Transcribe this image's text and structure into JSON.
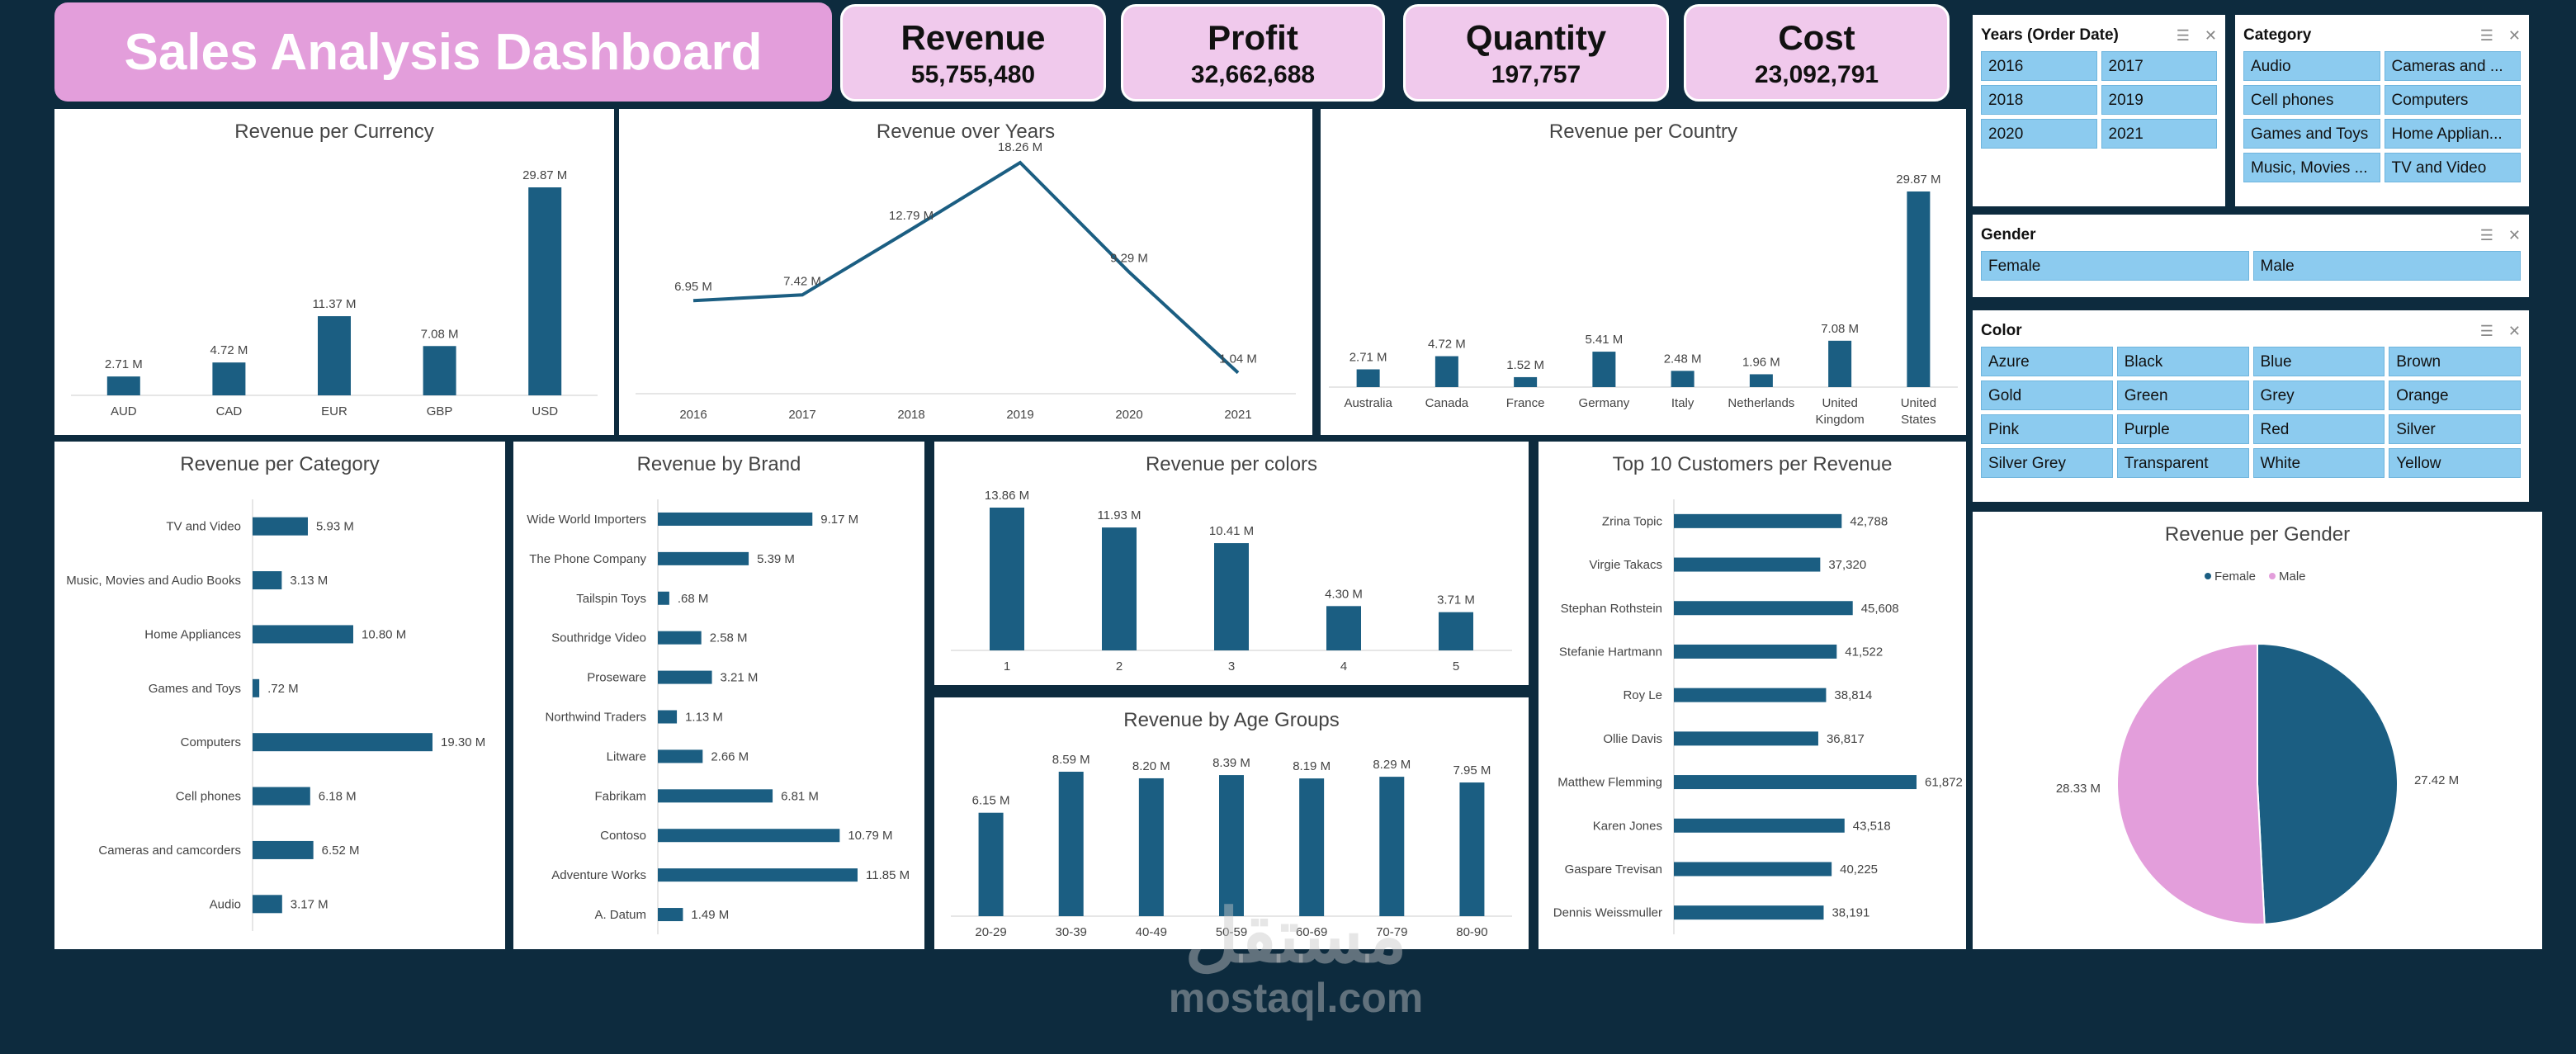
{
  "header": {
    "title": "Sales Analysis Dashboard"
  },
  "kpis": [
    {
      "label": "Revenue",
      "value": "55,755,480"
    },
    {
      "label": "Profit",
      "value": "32,662,688"
    },
    {
      "label": "Quantity",
      "value": "197,757"
    },
    {
      "label": "Cost",
      "value": "23,092,791"
    }
  ],
  "colors": {
    "bar": "#1b5e82",
    "female": "#1b5e82",
    "male": "#e39edb",
    "background": "#0d2b3e"
  },
  "slicers": {
    "years": {
      "title": "Years (Order Date)",
      "items": [
        "2016",
        "2017",
        "2018",
        "2019",
        "2020",
        "2021"
      ]
    },
    "category": {
      "title": "Category",
      "items": [
        "Audio",
        "Cameras and ...",
        "Cell phones",
        "Computers",
        "Games and Toys",
        "Home Applian...",
        "Music, Movies ...",
        "TV and Video"
      ]
    },
    "gender": {
      "title": "Gender",
      "items": [
        "Female",
        "Male"
      ]
    },
    "color": {
      "title": "Color",
      "items": [
        "Azure",
        "Black",
        "Blue",
        "Brown",
        "Gold",
        "Green",
        "Grey",
        "Orange",
        "Pink",
        "Purple",
        "Red",
        "Silver",
        "Silver Grey",
        "Transparent",
        "White",
        "Yellow"
      ]
    }
  },
  "chart_data": [
    {
      "id": "currency",
      "type": "bar",
      "title": "Revenue per Currency",
      "categories": [
        "AUD",
        "CAD",
        "EUR",
        "GBP",
        "USD"
      ],
      "values": [
        2.71,
        4.72,
        11.37,
        7.08,
        29.87
      ],
      "labels": [
        "2.71 M",
        "4.72 M",
        "11.37 M",
        "7.08 M",
        "29.87 M"
      ]
    },
    {
      "id": "years",
      "type": "line",
      "title": "Revenue over Years",
      "categories": [
        "2016",
        "2017",
        "2018",
        "2019",
        "2020",
        "2021"
      ],
      "values": [
        6.95,
        7.42,
        12.79,
        18.26,
        9.29,
        1.04
      ],
      "labels": [
        "6.95 M",
        "7.42 M",
        "12.79 M",
        "18.26 M",
        "9.29 M",
        "1.04 M"
      ]
    },
    {
      "id": "country",
      "type": "bar",
      "title": "Revenue per Country",
      "categories": [
        "Australia",
        "Canada",
        "France",
        "Germany",
        "Italy",
        "Netherlands",
        "United Kingdom",
        "United States"
      ],
      "values": [
        2.71,
        4.72,
        1.52,
        5.41,
        2.48,
        1.96,
        7.08,
        29.87
      ],
      "labels": [
        "2.71 M",
        "4.72 M",
        "1.52 M",
        "5.41 M",
        "2.48 M",
        "1.96 M",
        "7.08 M",
        "29.87 M"
      ]
    },
    {
      "id": "category",
      "type": "bar",
      "orientation": "horizontal",
      "title": "Revenue per Category",
      "categories": [
        "TV and Video",
        "Music, Movies and Audio Books",
        "Home Appliances",
        "Games and Toys",
        "Computers",
        "Cell phones",
        "Cameras and camcorders",
        "Audio"
      ],
      "values": [
        5.93,
        3.13,
        10.8,
        0.72,
        19.3,
        6.18,
        6.52,
        3.17
      ],
      "labels": [
        "5.93 M",
        "3.13 M",
        "10.80 M",
        ".72 M",
        "19.30 M",
        "6.18 M",
        "6.52 M",
        "3.17 M"
      ]
    },
    {
      "id": "brand",
      "type": "bar",
      "orientation": "horizontal",
      "title": "Revenue by Brand",
      "categories": [
        "Wide World Importers",
        "The Phone Company",
        "Tailspin Toys",
        "Southridge Video",
        "Proseware",
        "Northwind Traders",
        "Litware",
        "Fabrikam",
        "Contoso",
        "Adventure Works",
        "A. Datum"
      ],
      "values": [
        9.17,
        5.39,
        0.68,
        2.58,
        3.21,
        1.13,
        2.66,
        6.81,
        10.79,
        11.85,
        1.49
      ],
      "labels": [
        "9.17 M",
        "5.39 M",
        ".68 M",
        "2.58 M",
        "3.21 M",
        "1.13 M",
        "2.66 M",
        "6.81 M",
        "10.79 M",
        "11.85 M",
        "1.49 M"
      ]
    },
    {
      "id": "colors",
      "type": "bar",
      "title": "Revenue per colors",
      "categories": [
        "1",
        "2",
        "3",
        "4",
        "5"
      ],
      "values": [
        13.86,
        11.93,
        10.41,
        4.3,
        3.71
      ],
      "labels": [
        "13.86 M",
        "11.93 M",
        "10.41 M",
        "4.30 M",
        "3.71 M"
      ]
    },
    {
      "id": "age",
      "type": "bar",
      "title": "Revenue by Age Groups",
      "categories": [
        "20-29",
        "30-39",
        "40-49",
        "50-59",
        "60-69",
        "70-79",
        "80-90"
      ],
      "values": [
        6.15,
        8.59,
        8.2,
        8.39,
        8.19,
        8.29,
        7.95
      ],
      "labels": [
        "6.15 M",
        "8.59 M",
        "8.20 M",
        "8.39 M",
        "8.19 M",
        "8.29 M",
        "7.95 M"
      ]
    },
    {
      "id": "customers",
      "type": "bar",
      "orientation": "horizontal",
      "title": "Top 10 Customers per Revenue",
      "categories": [
        "Zrina Topic",
        "Virgie Takacs",
        "Stephan Rothstein",
        "Stefanie Hartmann",
        "Roy Le",
        "Ollie Davis",
        "Matthew Flemming",
        "Karen Jones",
        "Gaspare Trevisan",
        "Dennis Weissmuller"
      ],
      "values": [
        42788,
        37320,
        45608,
        41522,
        38814,
        36817,
        61872,
        43518,
        40225,
        38191
      ],
      "labels": [
        "42,788",
        "37,320",
        "45,608",
        "41,522",
        "38,814",
        "36,817",
        "61,872",
        "43,518",
        "40,225",
        "38,191"
      ]
    },
    {
      "id": "gender",
      "type": "pie",
      "title": "Revenue per Gender",
      "categories": [
        "Female",
        "Male"
      ],
      "values": [
        27.42,
        28.33
      ],
      "labels": [
        "27.42 M",
        "28.33 M"
      ]
    }
  ],
  "watermark": {
    "arabic": "مستقل",
    "latin": "mostaql.com"
  }
}
